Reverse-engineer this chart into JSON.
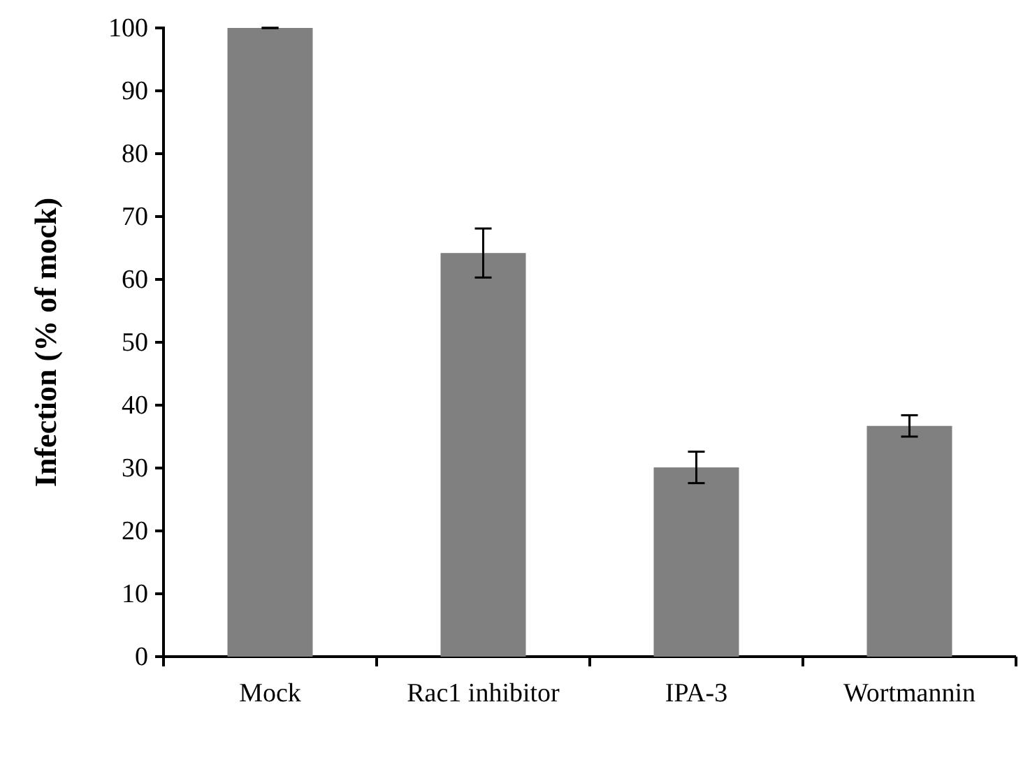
{
  "chart_data": {
    "type": "bar",
    "ylabel": "Infection (% of mock)",
    "categories": [
      "Mock",
      "Rac1 inhibitor",
      "IPA-3",
      "Wortmannin"
    ],
    "values": [
      100,
      64.2,
      30.1,
      36.7
    ],
    "errors": [
      0,
      3.9,
      2.5,
      1.7
    ],
    "color": "#808080",
    "ylim": [
      0,
      100
    ],
    "yticks": [
      0,
      10,
      20,
      30,
      40,
      50,
      60,
      70,
      80,
      90,
      100
    ],
    "grid": false
  }
}
